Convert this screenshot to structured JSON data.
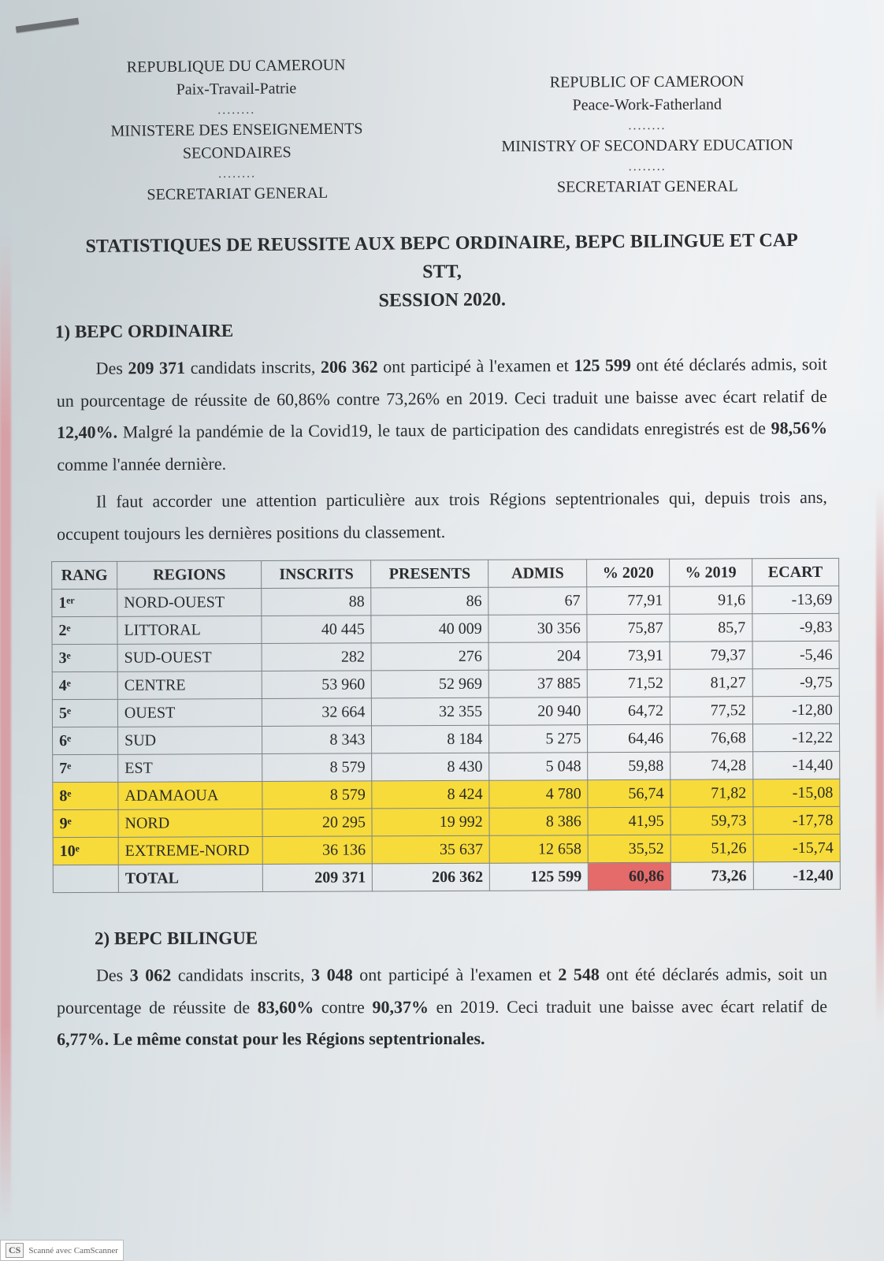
{
  "header": {
    "fr": {
      "country": "REPUBLIQUE DU CAMEROUN",
      "motto": "Paix-Travail-Patrie",
      "ministry": "MINISTERE DES ENSEIGNEMENTS SECONDAIRES",
      "secretariat": "SECRETARIAT GENERAL"
    },
    "en": {
      "country": "REPUBLIC OF CAMEROON",
      "motto": "Peace-Work-Fatherland",
      "ministry": "MINISTRY OF SECONDARY EDUCATION",
      "secretariat": "SECRETARIAT GENERAL"
    },
    "dots": "........"
  },
  "title": {
    "line1": "STATISTIQUES DE REUSSITE AUX BEPC ORDINAIRE, BEPC BILINGUE ET CAP STT,",
    "line2": "SESSION 2020."
  },
  "section1": {
    "heading": "1) BEPC ORDINAIRE",
    "para1_a": "Des ",
    "para1_b": "209 371",
    "para1_c": " candidats inscrits, ",
    "para1_d": "206 362",
    "para1_e": " ont participé à l'examen et ",
    "para1_f": "125 599",
    "para1_g": " ont été déclarés admis, soit un pourcentage de réussite de 60,86% contre 73,26% en 2019. Ceci traduit une baisse avec écart relatif de ",
    "para1_h": "12,40%.",
    "para1_i": " Malgré la pandémie de la Covid19, le taux de participation des candidats enregistrés est de ",
    "para1_j": "98,56%",
    "para1_k": " comme l'année dernière.",
    "para2": "Il faut accorder une attention particulière aux trois Régions septentrionales qui, depuis trois ans, occupent toujours les dernières positions du classement."
  },
  "table1": {
    "columns": [
      "RANG",
      "REGIONS",
      "INSCRITS",
      "PRESENTS",
      "ADMIS",
      "% 2020",
      "% 2019",
      "ECART"
    ],
    "col_align": [
      "left",
      "left",
      "right",
      "right",
      "right",
      "right",
      "right",
      "right"
    ],
    "highlight_color": "#f7db3a",
    "total_highlight_color": "#e56a6a",
    "border_color": "#7d8286",
    "rows": [
      {
        "rank": "1ᵉʳ",
        "region": "NORD-OUEST",
        "inscrits": "88",
        "presents": "86",
        "admis": "67",
        "p2020": "77,91",
        "p2019": "91,6",
        "ecart": "-13,69",
        "highlight": false
      },
      {
        "rank": "2ᵉ",
        "region": "LITTORAL",
        "inscrits": "40 445",
        "presents": "40 009",
        "admis": "30 356",
        "p2020": "75,87",
        "p2019": "85,7",
        "ecart": "-9,83",
        "highlight": false
      },
      {
        "rank": "3ᵉ",
        "region": "SUD-OUEST",
        "inscrits": "282",
        "presents": "276",
        "admis": "204",
        "p2020": "73,91",
        "p2019": "79,37",
        "ecart": "-5,46",
        "highlight": false
      },
      {
        "rank": "4ᵉ",
        "region": "CENTRE",
        "inscrits": "53 960",
        "presents": "52 969",
        "admis": "37 885",
        "p2020": "71,52",
        "p2019": "81,27",
        "ecart": "-9,75",
        "highlight": false
      },
      {
        "rank": "5ᵉ",
        "region": "OUEST",
        "inscrits": "32 664",
        "presents": "32 355",
        "admis": "20 940",
        "p2020": "64,72",
        "p2019": "77,52",
        "ecart": "-12,80",
        "highlight": false
      },
      {
        "rank": "6ᵉ",
        "region": "SUD",
        "inscrits": "8 343",
        "presents": "8 184",
        "admis": "5 275",
        "p2020": "64,46",
        "p2019": "76,68",
        "ecart": "-12,22",
        "highlight": false
      },
      {
        "rank": "7ᵉ",
        "region": "EST",
        "inscrits": "8 579",
        "presents": "8 430",
        "admis": "5 048",
        "p2020": "59,88",
        "p2019": "74,28",
        "ecart": "-14,40",
        "highlight": false
      },
      {
        "rank": "8ᵉ",
        "region": "ADAMAOUA",
        "inscrits": "8 579",
        "presents": "8 424",
        "admis": "4 780",
        "p2020": "56,74",
        "p2019": "71,82",
        "ecart": "-15,08",
        "highlight": true
      },
      {
        "rank": "9ᵉ",
        "region": "NORD",
        "inscrits": "20 295",
        "presents": "19 992",
        "admis": "8 386",
        "p2020": "41,95",
        "p2019": "59,73",
        "ecart": "-17,78",
        "highlight": true
      },
      {
        "rank": "10ᵉ",
        "region": "EXTREME-NORD",
        "inscrits": "36 136",
        "presents": "35 637",
        "admis": "12 658",
        "p2020": "35,52",
        "p2019": "51,26",
        "ecart": "-15,74",
        "highlight": true
      }
    ],
    "total": {
      "label": "TOTAL",
      "inscrits": "209 371",
      "presents": "206 362",
      "admis": "125 599",
      "p2020": "60,86",
      "p2019": "73,26",
      "ecart": "-12,40"
    }
  },
  "section2": {
    "heading": "2) BEPC BILINGUE",
    "para_a": "Des ",
    "para_b": "3 062",
    "para_c": " candidats inscrits, ",
    "para_d": "3 048",
    "para_e": " ont participé à l'examen et ",
    "para_f": "2 548",
    "para_g": " ont été déclarés admis, soit un pourcentage de réussite de ",
    "para_h": "83,60%",
    "para_i": " contre ",
    "para_j": "90,37%",
    "para_k": " en 2019. Ceci traduit une baisse avec écart relatif de ",
    "para_l": "6,77%. Le même constat pour les Régions septentrionales."
  },
  "footer": {
    "badge": "CS",
    "text": "Scanné avec CamScanner"
  }
}
